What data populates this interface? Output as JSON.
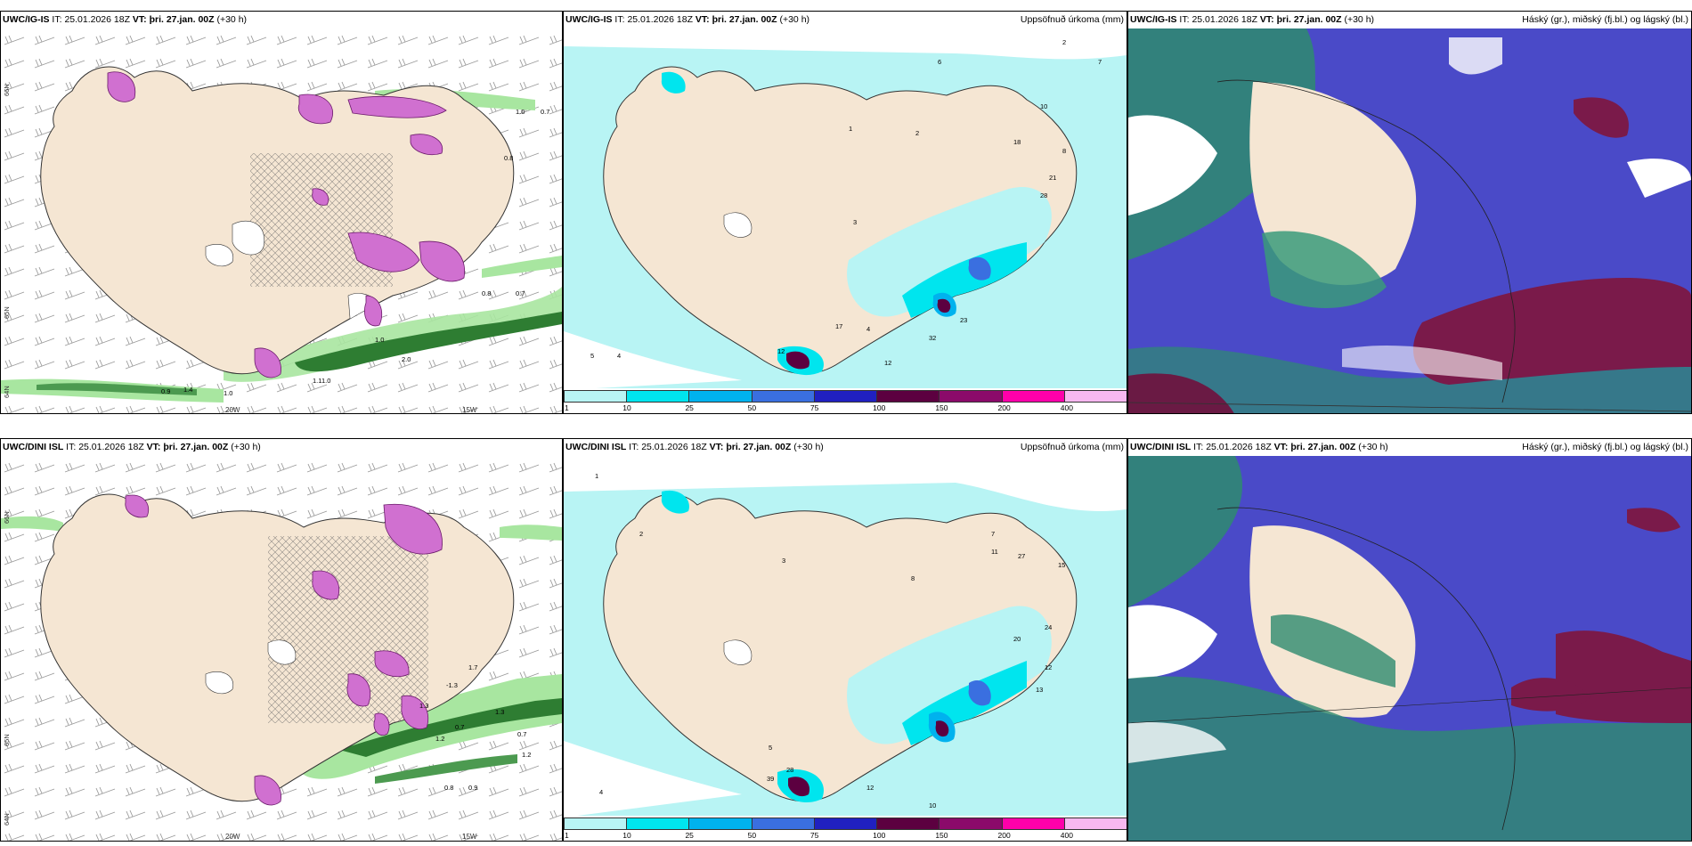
{
  "panels": [
    {
      "id": "p1",
      "header": {
        "model": "UWC/IG-IS",
        "it_label": "IT:",
        "it": "25.01.2026 18Z",
        "vt_label": "VT:",
        "vt": "þri. 27.jan. 00Z",
        "lead": "(+30 h)",
        "right": ""
      },
      "ticks": {
        "lon": [
          "20W",
          "15W"
        ],
        "lat": [
          "66N",
          "65N",
          "64N"
        ]
      }
    },
    {
      "id": "p2",
      "header": {
        "model": "UWC/IG-IS",
        "it_label": "IT:",
        "it": "25.01.2026 18Z",
        "vt_label": "VT:",
        "vt": "þri. 27.jan. 00Z",
        "lead": "(+30 h)",
        "right": "Uppsöfnuð úrkoma (mm)"
      }
    },
    {
      "id": "p3",
      "header": {
        "model": "UWC/IG-IS",
        "it_label": "IT:",
        "it": "25.01.2026 18Z",
        "vt_label": "VT:",
        "vt": "þri. 27.jan. 00Z",
        "lead": "(+30 h)",
        "right": "Háský (gr.), miðský (fj.bl.) og lágský (bl.)"
      }
    },
    {
      "id": "p4",
      "header": {
        "model": "UWC/DINI ISL",
        "it_label": "IT:",
        "it": "25.01.2026 18Z",
        "vt_label": "VT:",
        "vt": "þri. 27.jan. 00Z",
        "lead": "(+30 h)",
        "right": ""
      },
      "ticks": {
        "lon": [
          "20W",
          "15W"
        ],
        "lat": [
          "66N",
          "65N",
          "64N"
        ]
      }
    },
    {
      "id": "p5",
      "header": {
        "model": "UWC/DINI ISL",
        "it_label": "IT:",
        "it": "25.01.2026 18Z",
        "vt_label": "VT:",
        "vt": "þri. 27.jan. 00Z",
        "lead": "(+30 h)",
        "right": "Uppsöfnuð úrkoma (mm)"
      }
    },
    {
      "id": "p6",
      "header": {
        "model": "UWC/DINI ISL",
        "it_label": "IT:",
        "it": "25.01.2026 18Z",
        "vt_label": "VT:",
        "vt": "þri. 27.jan. 00Z",
        "lead": "(+30 h)",
        "right": "Háský (gr.), miðský (fj.bl.) og lágský (bl.)"
      }
    }
  ],
  "colorbar": {
    "labels": [
      "1",
      "10",
      "25",
      "50",
      "75",
      "100",
      "150",
      "200",
      "400"
    ],
    "colors": [
      "#b8f4f4",
      "#00e5ee",
      "#00b2ee",
      "#3a6fe0",
      "#2020c0",
      "#5c0040",
      "#8b0a6a",
      "#ff00aa",
      "#f8b8f0"
    ]
  },
  "snow_values_top": [
    "0.9",
    "1.4",
    "1.0",
    "1.0",
    "2.0",
    "0.8",
    "0.7",
    "1.0",
    "0.7",
    "0.8",
    "1.1",
    "1.0"
  ],
  "snow_values_bottom": [
    "0.7",
    "1.2",
    "1.3",
    "0.7",
    "1.2",
    "0.9",
    "0.8",
    "1.7",
    "-1.3",
    "1.3"
  ],
  "precip_values_top": [
    "2",
    "4",
    "6",
    "7",
    "5",
    "8",
    "10",
    "12",
    "18",
    "21",
    "28",
    "32",
    "23",
    "12",
    "17",
    "4",
    "3",
    "2",
    "1"
  ],
  "precip_values_bottom": [
    "1",
    "2",
    "3",
    "4",
    "5",
    "7",
    "8",
    "11",
    "12",
    "15",
    "24",
    "27",
    "28",
    "39",
    "20",
    "12",
    "10",
    "13"
  ],
  "colors": {
    "land": "#f5e6d3",
    "sea": "#ffffff",
    "precip_light": "#b8f4f4",
    "snow_green": "#2e7d32",
    "magenta": "#c050c8",
    "cloud_high": "#3f3fbf",
    "cloud_mid": "#5b2044",
    "cloud_low": "#2e8b6f"
  }
}
